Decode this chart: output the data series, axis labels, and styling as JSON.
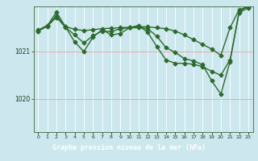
{
  "bg_color": "#cce8ee",
  "plot_bg": "#cce8ee",
  "grid_color_v": "#ffffff",
  "grid_color_h": "#ff9999",
  "line_color": "#2d6a2d",
  "title": "Graphe pression niveau de la mer (hPa)",
  "title_bg": "#2d5a1a",
  "title_fg": "#ffffff",
  "ylim": [
    1019.3,
    1021.95
  ],
  "xlim": [
    -0.5,
    23.5
  ],
  "yticks": [
    1020,
    1021
  ],
  "xticks": [
    0,
    1,
    2,
    3,
    4,
    5,
    6,
    7,
    8,
    9,
    10,
    11,
    12,
    13,
    14,
    15,
    16,
    17,
    18,
    19,
    20,
    21,
    22,
    23
  ],
  "seriesA": [
    1021.45,
    1021.55,
    1021.75,
    1021.52,
    1021.47,
    1021.44,
    1021.46,
    1021.48,
    1021.49,
    1021.5,
    1021.51,
    1021.52,
    1021.52,
    1021.5,
    1021.48,
    1021.43,
    1021.35,
    1021.25,
    1021.15,
    1021.05,
    1020.92,
    1021.5,
    1021.88,
    1021.95
  ],
  "seriesB": [
    1021.43,
    1021.54,
    1021.83,
    1021.52,
    1021.2,
    1021.0,
    1021.3,
    1021.46,
    1021.35,
    1021.38,
    1021.5,
    1021.55,
    1021.4,
    1021.1,
    1020.82,
    1020.75,
    1020.75,
    1020.73,
    1020.68,
    1020.58,
    1020.5,
    1020.82,
    1021.82,
    1021.92
  ],
  "seriesC": [
    1021.43,
    1021.53,
    1021.72,
    1021.51,
    1021.35,
    1021.18,
    1021.33,
    1021.43,
    1021.42,
    1021.48,
    1021.5,
    1021.5,
    1021.48,
    1021.32,
    1021.08,
    1020.98,
    1020.85,
    1020.8,
    1020.72,
    1020.38,
    1020.1,
    1020.78,
    1021.85,
    1021.95
  ]
}
